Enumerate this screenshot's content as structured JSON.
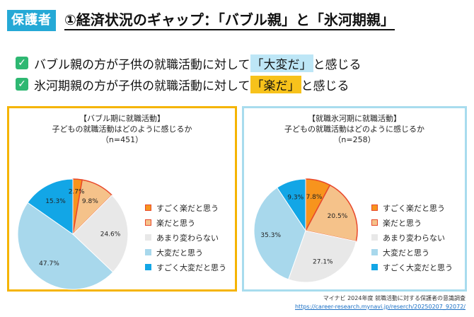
{
  "header": {
    "tag": "保護者",
    "title": "①経済状況のギャップ：「バブル親」と「氷河期親」"
  },
  "points": [
    {
      "pre": "バブル親の方が子供の就職活動に対して",
      "highlight": "「大変だ」",
      "post": "と感じる",
      "hl": "blue"
    },
    {
      "pre": "氷河期親の方が子供の就職活動に対して",
      "highlight": "「楽だ」",
      "post": "と感じる",
      "hl": "yellow"
    }
  ],
  "colors": {
    "tag": "#25a9d6",
    "check": "#2eb872",
    "left_border": "#f5b400",
    "right_border": "#a8dcee"
  },
  "legend": [
    {
      "label": "すごく楽だと思う",
      "color": "#f7941d",
      "border": "#e8492c"
    },
    {
      "label": "楽だと思う",
      "color": "#f5c28a",
      "border": "#e8492c"
    },
    {
      "label": "あまり変わらない",
      "color": "#e8e8e8",
      "border": "#e8e8e8"
    },
    {
      "label": "大変だと思う",
      "color": "#a8d8ec",
      "border": "#a8d8ec"
    },
    {
      "label": "すごく大変だと思う",
      "color": "#12a6e6",
      "border": "#12a6e6"
    }
  ],
  "chart_data": [
    {
      "type": "pie",
      "title": "【バブル期に就職活動】",
      "subtitle": "子どもの就職活動はどのように感じるか",
      "n_label": "（n=451）",
      "categories": [
        "すごく楽だと思う",
        "楽だと思う",
        "あまり変わらない",
        "大変だと思う",
        "すごく大変だと思う"
      ],
      "values": [
        2.7,
        9.8,
        24.6,
        47.7,
        15.3
      ],
      "labels": [
        "2.7%",
        "9.8%",
        "24.6%",
        "47.7%",
        "15.3%"
      ],
      "legend": "right"
    },
    {
      "type": "pie",
      "title": "【就職氷河期に就職活動】",
      "subtitle": "子どもの就職活動はどのように感じるか",
      "n_label": "（n=258）",
      "categories": [
        "すごく楽だと思う",
        "楽だと思う",
        "あまり変わらない",
        "大変だと思う",
        "すごく大変だと思う"
      ],
      "values": [
        7.8,
        20.5,
        27.1,
        35.3,
        9.3
      ],
      "labels": [
        "7.8%",
        "20.5%",
        "27.1%",
        "35.3%",
        "9.3%"
      ],
      "legend": "right"
    }
  ],
  "source": {
    "line1": "マイナビ 2024年度 就職活動に対する保護者の意識調査",
    "line2": "https://career-research.mynavi.jp/reserch/20250207_92072/"
  }
}
